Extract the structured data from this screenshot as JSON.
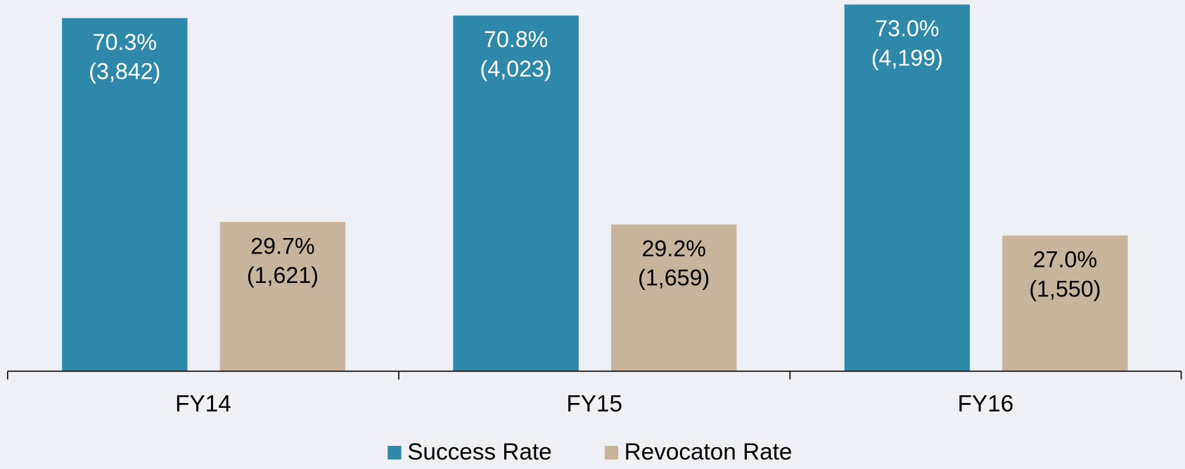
{
  "chart_data": {
    "type": "bar",
    "categories": [
      "FY14",
      "FY15",
      "FY16"
    ],
    "series": [
      {
        "name": "Success Rate",
        "color": "#2e88aa",
        "label_color": "#ffffff",
        "values": [
          70.3,
          70.8,
          73.0
        ],
        "value_labels": [
          "70.3%",
          "70.8%",
          "73.0%"
        ],
        "counts": [
          3842,
          4023,
          4199
        ],
        "count_labels": [
          "(3,842)",
          "(4,023)",
          "(4,199)"
        ]
      },
      {
        "name": "Revocaton Rate",
        "color": "#c8b49c",
        "label_color": "#000000",
        "values": [
          29.7,
          29.2,
          27.0
        ],
        "value_labels": [
          "29.7%",
          "29.2%",
          "27.0%"
        ],
        "counts": [
          1621,
          1659,
          1550
        ],
        "count_labels": [
          "(1,621)",
          "(1,659)",
          "(1,550)"
        ]
      }
    ],
    "ylim": [
      0,
      73
    ],
    "legend": "bottom"
  }
}
